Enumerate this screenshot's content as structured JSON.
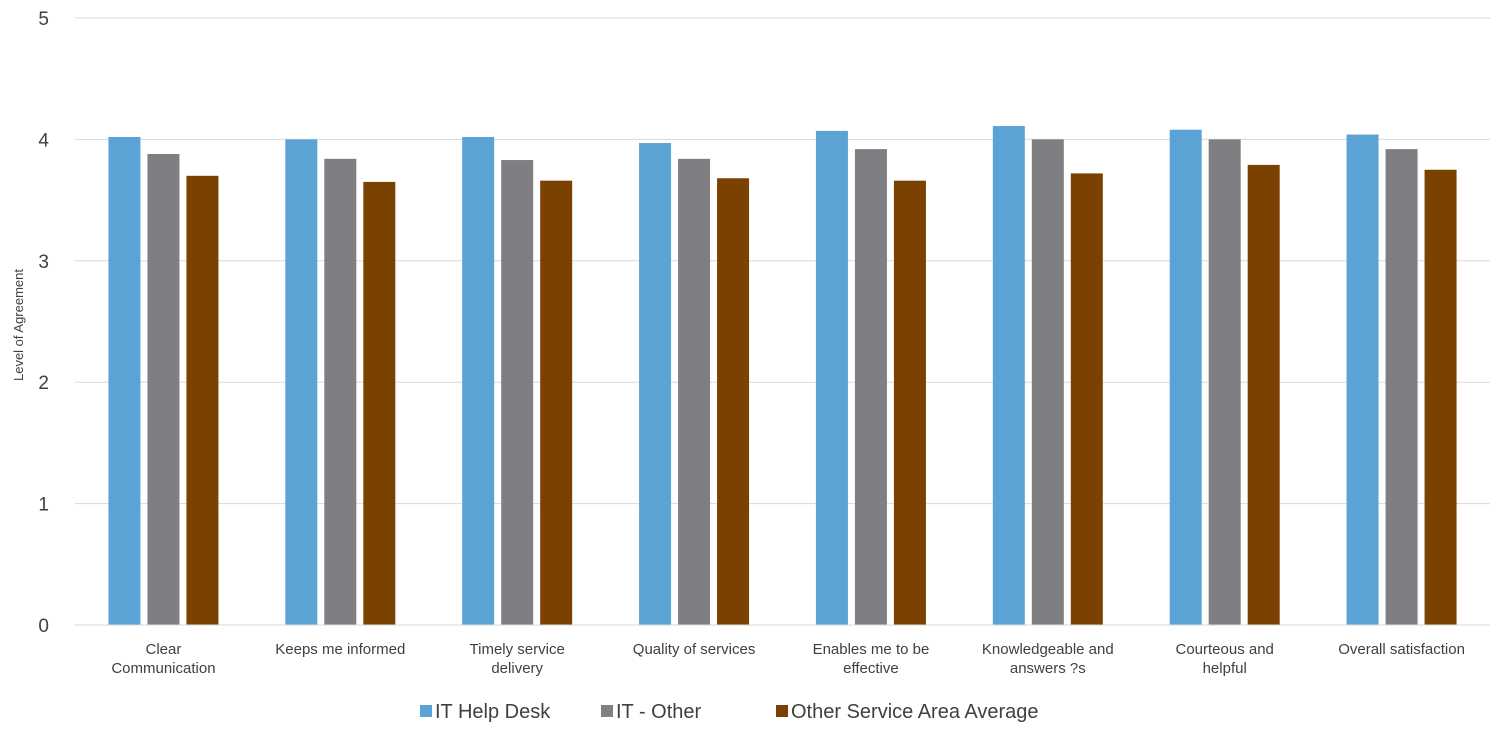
{
  "chart_data": {
    "type": "bar",
    "title": "",
    "xlabel": "",
    "ylabel": "Level of Agreement",
    "ylim": [
      0,
      5
    ],
    "yticks": [
      0,
      1,
      2,
      3,
      4,
      5
    ],
    "grid": true,
    "legend_position": "bottom",
    "categories": [
      [
        "Clear",
        "Communication"
      ],
      [
        "Keeps me informed"
      ],
      [
        "Timely service",
        "delivery"
      ],
      [
        "Quality of services"
      ],
      [
        "Enables me to be",
        "effective"
      ],
      [
        "Knowledgeable and",
        "answers ?s"
      ],
      [
        "Courteous and",
        "helpful"
      ],
      [
        "Overall satisfaction"
      ]
    ],
    "series": [
      {
        "name": "IT Help Desk",
        "color": "#5BA3D5",
        "values": [
          4.02,
          4.0,
          4.02,
          3.97,
          4.07,
          4.11,
          4.08,
          4.04
        ]
      },
      {
        "name": "IT - Other",
        "color": "#7F7F83",
        "values": [
          3.88,
          3.84,
          3.83,
          3.84,
          3.92,
          4.0,
          4.0,
          3.92
        ]
      },
      {
        "name": "Other Service Area Average",
        "color": "#7B4100",
        "values": [
          3.7,
          3.65,
          3.66,
          3.68,
          3.66,
          3.72,
          3.79,
          3.75
        ]
      }
    ]
  }
}
